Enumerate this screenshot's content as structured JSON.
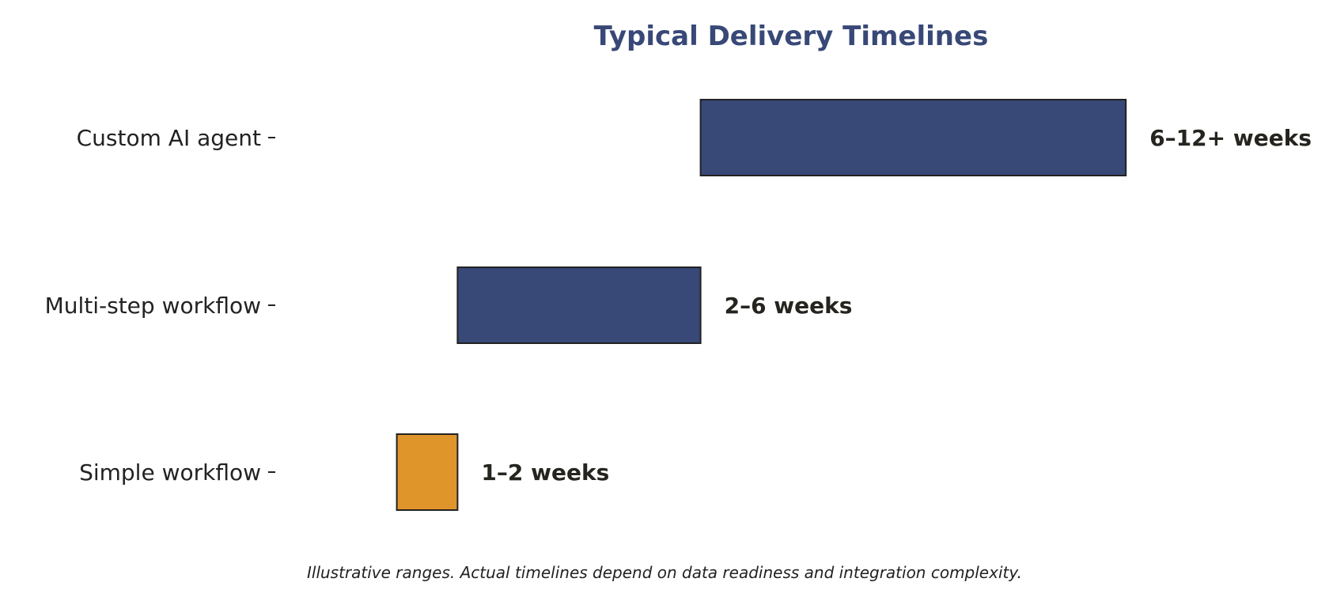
{
  "chart_data": {
    "type": "bar",
    "orientation": "horizontal",
    "subtype": "floating-range",
    "title": "Typical Delivery Timelines",
    "xlabel": "",
    "ylabel": "",
    "grid": false,
    "xlim": [
      -1,
      16
    ],
    "categories": [
      "Custom AI agent",
      "Multi-step workflow",
      "Simple workflow"
    ],
    "ranges": [
      [
        6,
        13
      ],
      [
        2,
        6
      ],
      [
        1,
        2
      ]
    ],
    "labels": [
      "6–12+ weeks",
      "2–6 weeks",
      "1–2 weeks"
    ],
    "colors": [
      "#384877",
      "#384877",
      "#e0952b"
    ],
    "footnote": "Illustrative ranges. Actual timelines depend on data readiness and integration complexity."
  },
  "colors": {
    "title": "#384877",
    "bar_edge": "#222222",
    "text": "#222222"
  }
}
